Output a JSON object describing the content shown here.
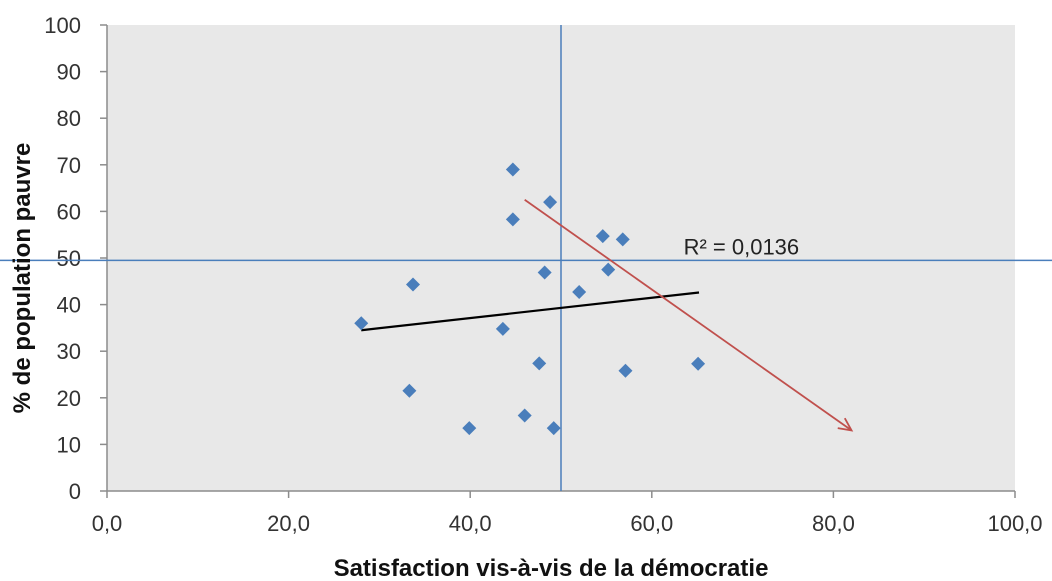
{
  "chart_data": {
    "type": "scatter",
    "xlabel": "Satisfaction vis-à-vis de la démocratie",
    "ylabel": "% de population pauvre",
    "xlim": [
      0,
      100
    ],
    "ylim": [
      0,
      100
    ],
    "x_ticks": [
      0,
      20,
      40,
      60,
      80,
      100
    ],
    "x_tick_labels": [
      "0,0",
      "20,0",
      "40,0",
      "60,0",
      "80,0",
      "100,0"
    ],
    "y_ticks": [
      0,
      10,
      20,
      30,
      40,
      50,
      60,
      70,
      80,
      90,
      100
    ],
    "y_tick_labels": [
      "0",
      "10",
      "20",
      "30",
      "40",
      "50",
      "60",
      "70",
      "80",
      "90",
      "100"
    ],
    "grid": false,
    "plot_background": "#e8e8e8",
    "colors": {
      "points": "#4a7ebb",
      "reference_lines": "#4a7ebb",
      "trendline": "#000000",
      "arrow": "#c0504d"
    },
    "points": [
      {
        "x": 28.0,
        "y": 36.0
      },
      {
        "x": 33.3,
        "y": 21.5
      },
      {
        "x": 33.7,
        "y": 44.3
      },
      {
        "x": 39.9,
        "y": 13.5
      },
      {
        "x": 43.6,
        "y": 34.8
      },
      {
        "x": 44.7,
        "y": 69.0
      },
      {
        "x": 44.7,
        "y": 58.3
      },
      {
        "x": 46.0,
        "y": 16.2
      },
      {
        "x": 47.6,
        "y": 27.4
      },
      {
        "x": 48.2,
        "y": 46.9
      },
      {
        "x": 48.8,
        "y": 62.0
      },
      {
        "x": 49.2,
        "y": 13.5
      },
      {
        "x": 52.0,
        "y": 42.7
      },
      {
        "x": 54.6,
        "y": 54.7
      },
      {
        "x": 55.2,
        "y": 47.5
      },
      {
        "x": 56.8,
        "y": 54.0
      },
      {
        "x": 57.1,
        "y": 25.8
      },
      {
        "x": 65.1,
        "y": 27.3
      }
    ],
    "reference_lines": {
      "x": 50,
      "y": 49.5
    },
    "trendline": {
      "x1": 28.0,
      "y1": 34.5,
      "x2": 65.2,
      "y2": 42.6
    },
    "arrow": {
      "x1": 46.0,
      "y1": 62.5,
      "x2": 82.0,
      "y2": 13.0
    },
    "annotation": {
      "text": "R² = 0,0136",
      "x": 63.5,
      "y": 50.8
    }
  }
}
